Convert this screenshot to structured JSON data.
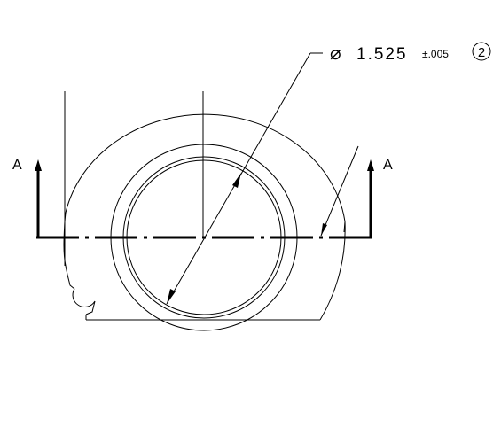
{
  "drawing": {
    "section_label_left": "A",
    "section_label_right": "A",
    "dimension": {
      "symbol": "⌀",
      "value": "1.525",
      "tolerance": "±.005",
      "balloon": "2"
    }
  }
}
